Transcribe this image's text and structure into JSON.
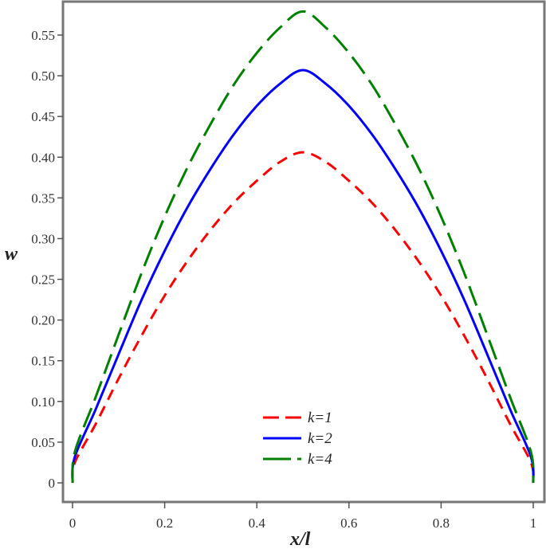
{
  "chart_data": {
    "type": "line",
    "title": "",
    "xlabel": "x/l",
    "ylabel": "w",
    "xlim": [
      0,
      1
    ],
    "ylim": [
      -0.025,
      0.6
    ],
    "grid": false,
    "legend_position": "lower center",
    "x_ticks": [
      "0",
      "0.2",
      "0.4",
      "0.6",
      "0.8",
      "1"
    ],
    "x_tick_values": [
      0,
      0.2,
      0.4,
      0.6,
      0.8,
      1
    ],
    "y_ticks": [
      "0",
      "0.05",
      "0.10",
      "0.15",
      "0.20",
      "0.25",
      "0.30",
      "0.35",
      "0.40",
      "0.45",
      "0.50",
      "0.55"
    ],
    "y_tick_values": [
      0,
      0.05,
      0.1,
      0.15,
      0.2,
      0.25,
      0.3,
      0.35,
      0.4,
      0.45,
      0.5,
      0.55
    ],
    "x": [
      0,
      0.005,
      0.05,
      0.1,
      0.15,
      0.2,
      0.25,
      0.3,
      0.35,
      0.4,
      0.45,
      0.5,
      0.55,
      0.6,
      0.65,
      0.7,
      0.75,
      0.8,
      0.85,
      0.9,
      0.95,
      0.995,
      1
    ],
    "series": [
      {
        "name": "k=1",
        "color": "#ff0000",
        "style": "dashed",
        "values": [
          0,
          0.025,
          0.072,
          0.128,
          0.181,
          0.23,
          0.273,
          0.311,
          0.344,
          0.371,
          0.394,
          0.406,
          0.394,
          0.371,
          0.344,
          0.311,
          0.273,
          0.23,
          0.181,
          0.128,
          0.072,
          0.025,
          0
        ]
      },
      {
        "name": "k=2",
        "color": "#0000ff",
        "style": "solid",
        "values": [
          0,
          0.032,
          0.09,
          0.158,
          0.225,
          0.285,
          0.339,
          0.386,
          0.428,
          0.463,
          0.49,
          0.507,
          0.49,
          0.463,
          0.428,
          0.386,
          0.339,
          0.285,
          0.225,
          0.158,
          0.09,
          0.032,
          0
        ]
      },
      {
        "name": "k=4",
        "color": "#008000",
        "style": "long-dash",
        "values": [
          0,
          0.038,
          0.105,
          0.182,
          0.258,
          0.327,
          0.388,
          0.441,
          0.489,
          0.528,
          0.559,
          0.579,
          0.559,
          0.528,
          0.489,
          0.441,
          0.388,
          0.327,
          0.258,
          0.182,
          0.105,
          0.038,
          0
        ]
      }
    ]
  },
  "legend": {
    "items": [
      {
        "label": "k=1",
        "color": "#ff0000"
      },
      {
        "label": "k=2",
        "color": "#0000ff"
      },
      {
        "label": "k=4",
        "color": "#008000"
      }
    ]
  },
  "axes": {
    "xlabel": "x/l",
    "ylabel": "w"
  }
}
